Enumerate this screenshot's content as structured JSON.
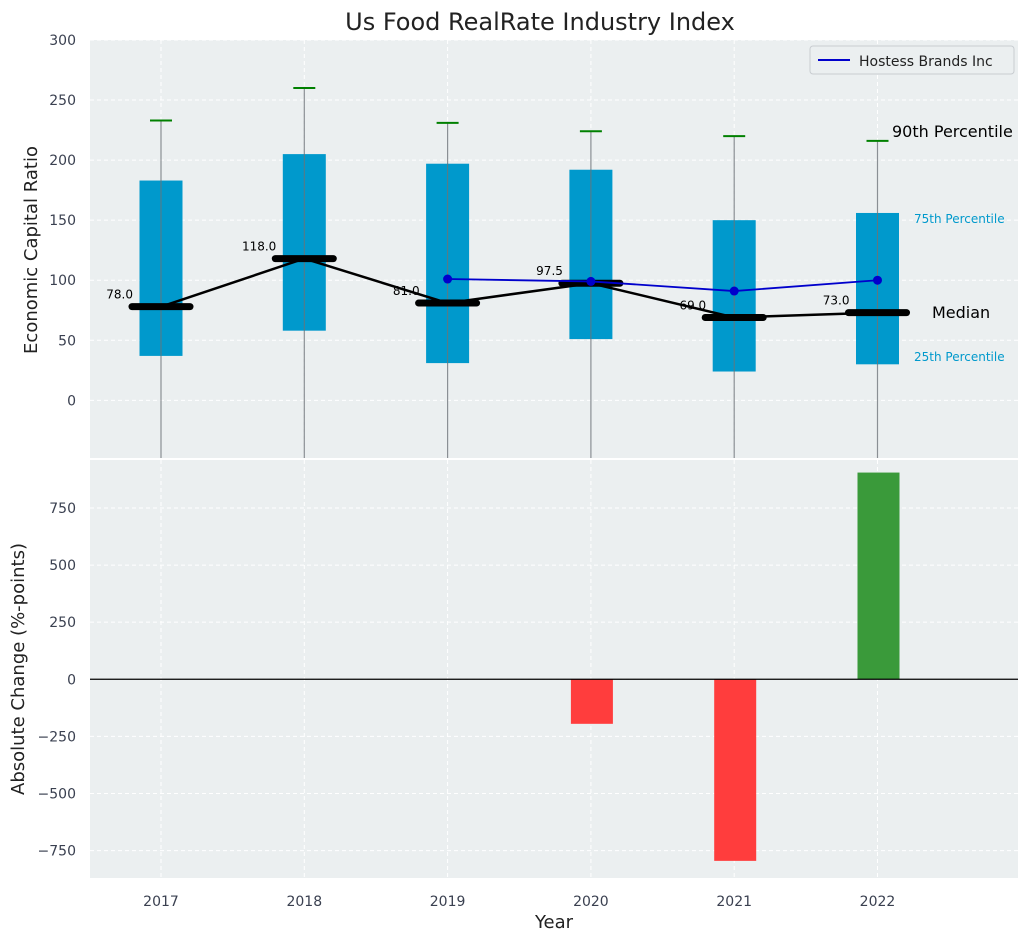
{
  "chart_data": [
    {
      "type": "box",
      "title": "Us Food RealRate Industry Index",
      "ylabel": "Economic Capital Ratio",
      "ylim": [
        -48,
        300
      ],
      "yticks": [
        0,
        50,
        100,
        150,
        200,
        250,
        300
      ],
      "categories": [
        "2017",
        "2018",
        "2019",
        "2020",
        "2021",
        "2022"
      ],
      "grid": true,
      "legend": {
        "placement": "top-right",
        "entries": [
          "Hostess Brands Inc"
        ]
      },
      "boxes": [
        {
          "year": "2017",
          "p25": 37,
          "median": 78.0,
          "p75": 183,
          "p90": 233,
          "median_label": "78.0"
        },
        {
          "year": "2018",
          "p25": 58,
          "median": 118.0,
          "p75": 205,
          "p90": 260,
          "median_label": "118.0"
        },
        {
          "year": "2019",
          "p25": 31,
          "median": 81.0,
          "p75": 197,
          "p90": 231,
          "median_label": "81.0"
        },
        {
          "year": "2020",
          "p25": 51,
          "median": 97.5,
          "p75": 192,
          "p90": 224,
          "median_label": "97.5"
        },
        {
          "year": "2021",
          "p25": 24,
          "median": 69.0,
          "p75": 150,
          "p90": 220,
          "median_label": "69.0"
        },
        {
          "year": "2022",
          "p25": 30,
          "median": 73.0,
          "p75": 156,
          "p90": 216,
          "median_label": "73.0"
        }
      ],
      "series": [
        {
          "name": "Hostess Brands Inc",
          "color": "#0000cc",
          "x": [
            "2019",
            "2020",
            "2021",
            "2022"
          ],
          "values": [
            101,
            99,
            91,
            100
          ]
        }
      ],
      "annotations": {
        "p90": "90th Percentile",
        "p75": "75th Percentile",
        "median": "Median",
        "p25": "25th Percentile"
      },
      "colors": {
        "box": "#0099cc",
        "median": "#000000",
        "whisker_cap": "#008000",
        "background": "#ebeff0"
      }
    },
    {
      "type": "bar",
      "ylabel": "Absolute Change (%-points)",
      "xlabel": "Year",
      "ylim": [
        -870,
        960
      ],
      "yticks": [
        -750,
        -500,
        -250,
        0,
        250,
        500,
        750
      ],
      "ytick_labels": [
        "−750",
        "−500",
        "−250",
        "0",
        "250",
        "500",
        "750"
      ],
      "categories": [
        "2017",
        "2018",
        "2019",
        "2020",
        "2021",
        "2022"
      ],
      "values": [
        null,
        null,
        null,
        -195,
        -795,
        905
      ],
      "colors": {
        "positive": "#3a9a3a",
        "negative": "#ff3d3d"
      },
      "grid": true
    }
  ]
}
